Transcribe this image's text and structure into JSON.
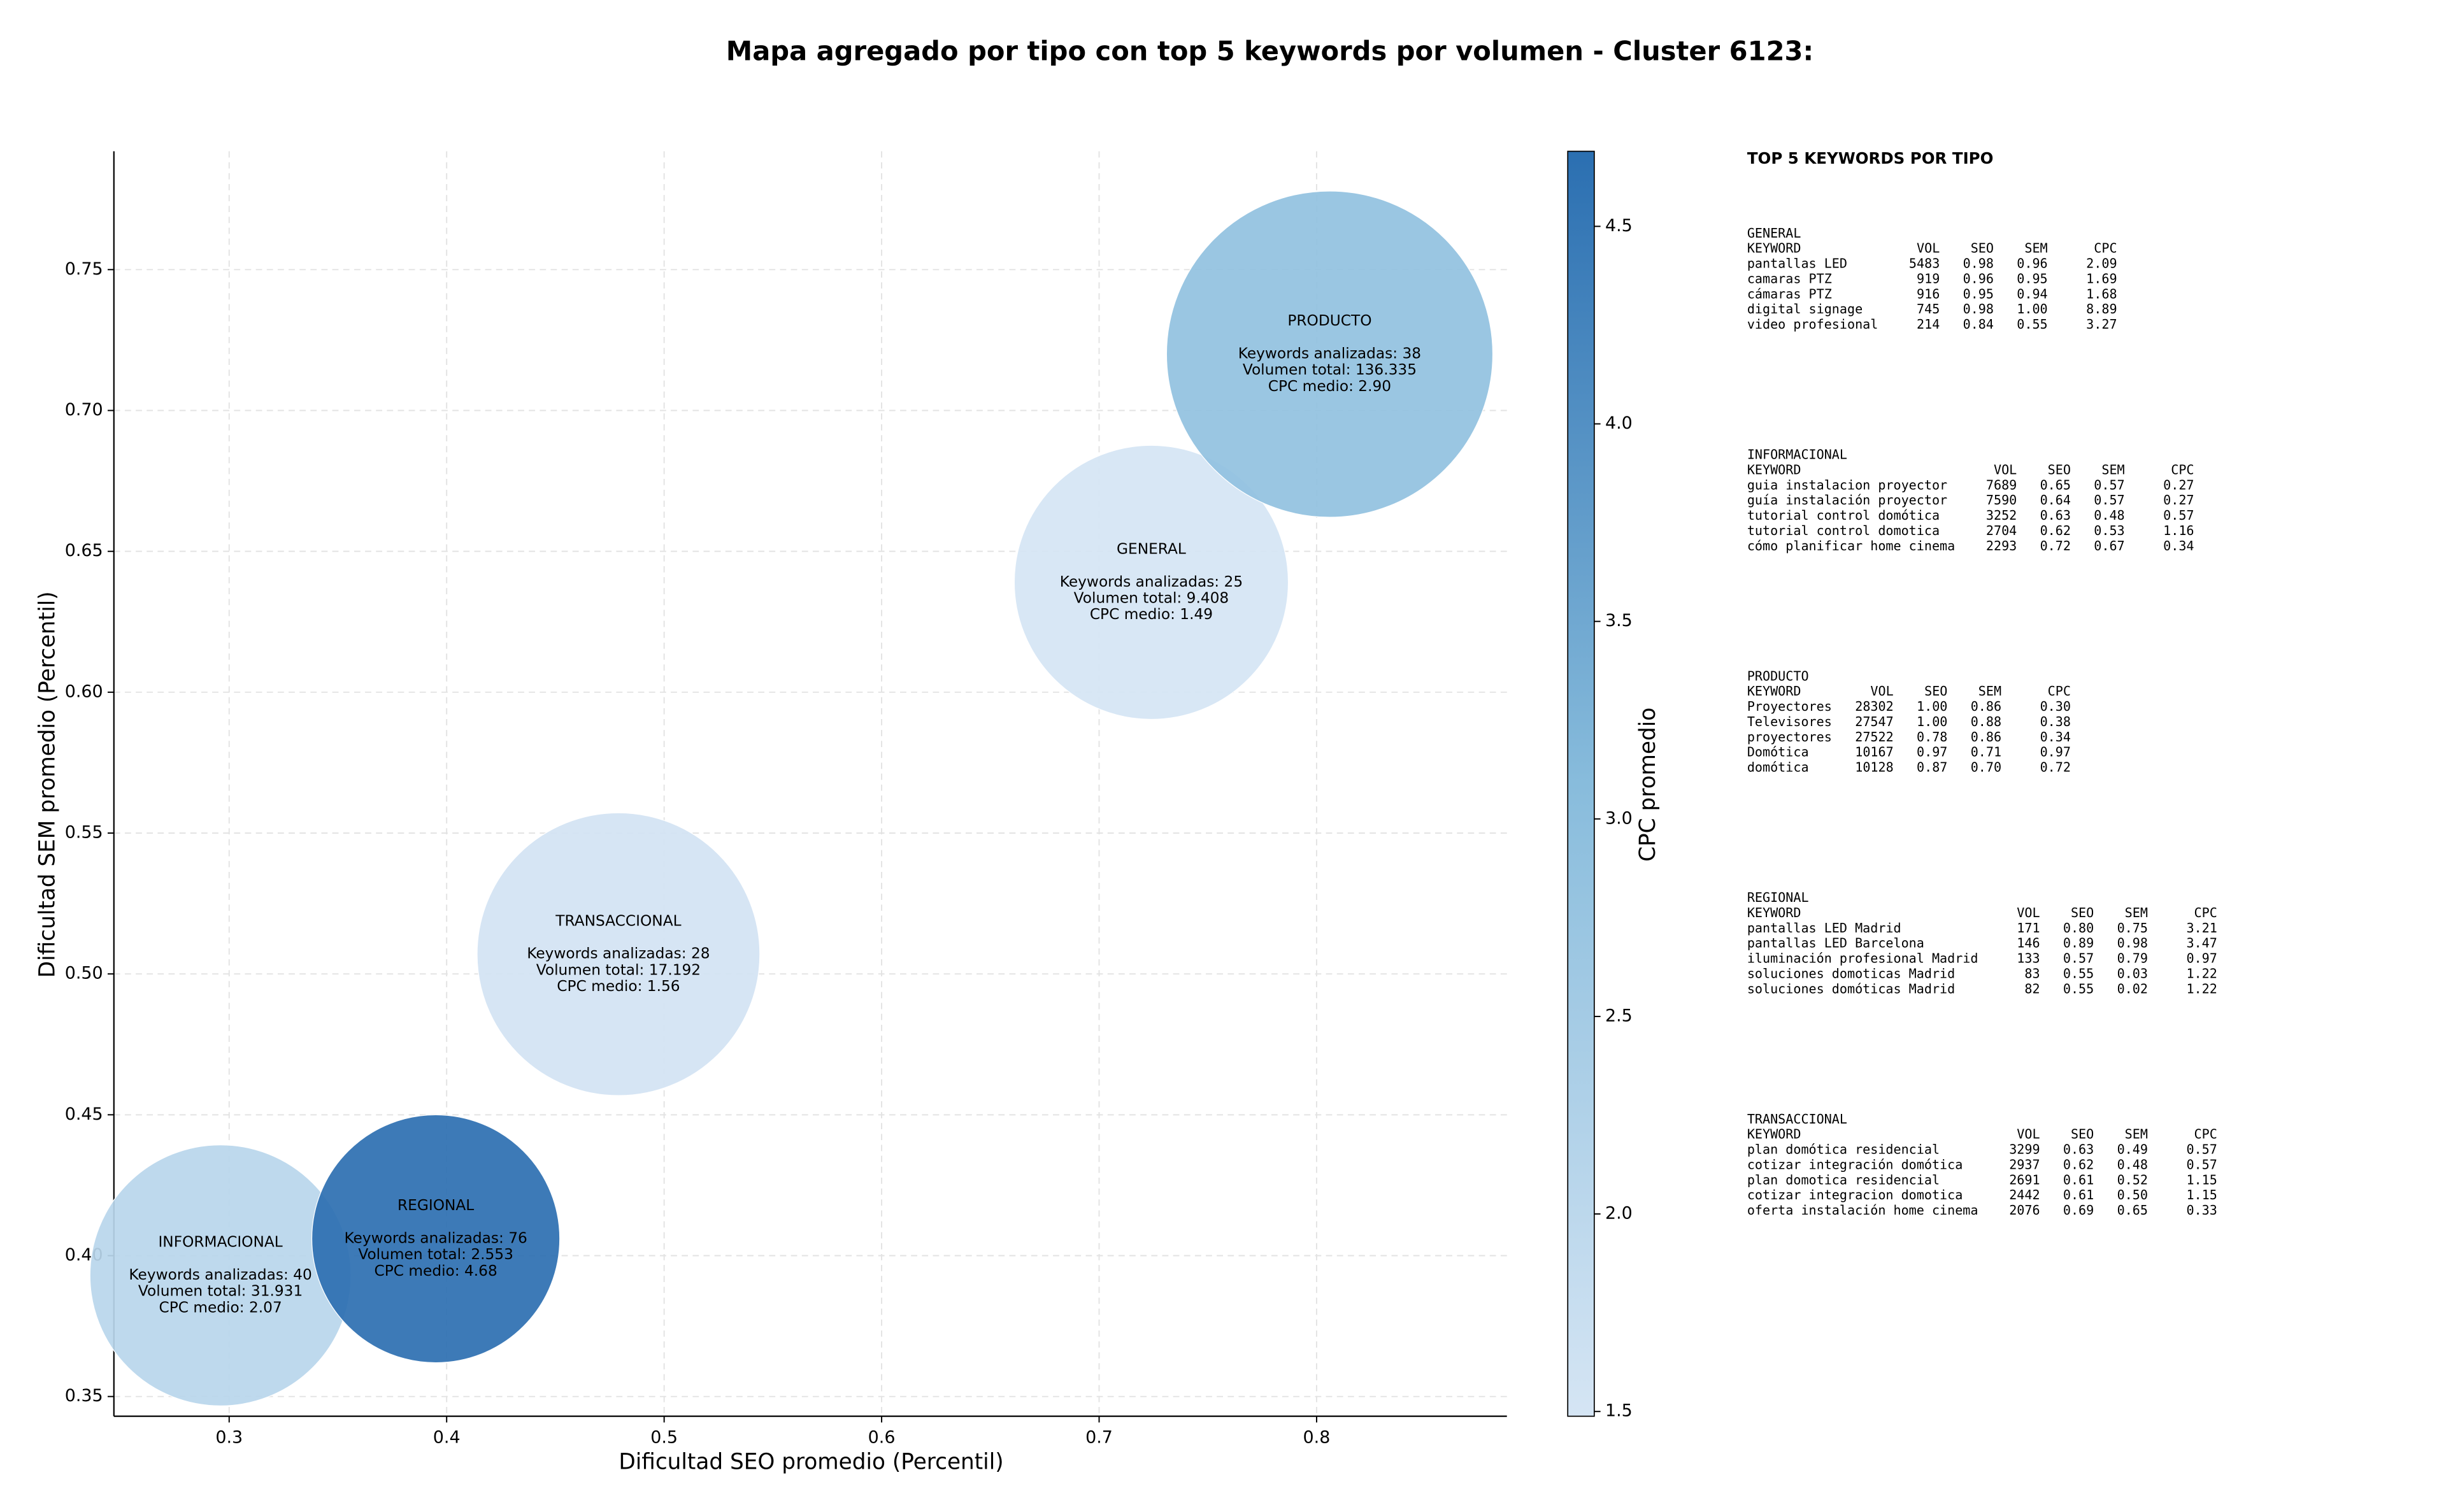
{
  "chart_data": {
    "type": "bubble",
    "title": "Mapa agregado por tipo con top 5 keywords por volumen - Cluster 6123:",
    "xlabel": "Dificultad SEO promedio (Percentil)",
    "ylabel": "Dificultad SEM promedio (Percentil)",
    "xlim": [
      0.247,
      0.8875
    ],
    "ylim": [
      0.343,
      0.792
    ],
    "xticks": [
      0.3,
      0.4,
      0.5,
      0.6,
      0.7,
      0.8
    ],
    "yticks": [
      0.35,
      {
        "value": 0.4,
        "label": "0.40"
      },
      0.45,
      {
        "value": 0.5,
        "label": "0.50"
      },
      0.55,
      {
        "value": 0.6,
        "label": "0.60"
      },
      0.65,
      {
        "value": 0.7,
        "label": "0.70"
      },
      0.75
    ],
    "grid": true,
    "series": [
      {
        "names": [
          "INFORMACIONAL",
          "REGIONAL",
          "TRANSACCIONAL",
          "GENERAL",
          "PRODUCTO"
        ],
        "x": [
          0.296,
          0.395,
          0.479,
          0.724,
          0.806
        ],
        "y": [
          0.393,
          0.406,
          0.507,
          0.639,
          0.72
        ],
        "sizes": [
          0.06,
          0.057,
          0.065,
          0.063,
          0.075
        ],
        "cpc": [
          2.07,
          4.68,
          1.56,
          1.49,
          2.9
        ],
        "annotations": [
          [
            "Keywords analizadas: 40",
            "Volumen total: 31.931",
            "CPC medio: 2.07"
          ],
          [
            "Keywords analizadas: 76",
            "Volumen total: 2.553",
            "CPC medio: 4.68"
          ],
          [
            "Keywords analizadas: 28",
            "Volumen total: 17.192",
            "CPC medio: 1.56"
          ],
          [
            "Keywords analizadas: 25",
            "Volumen total: 9.408",
            "CPC medio: 1.49"
          ],
          [
            "Keywords analizadas: 38",
            "Volumen total: 136.335",
            "CPC medio: 2.90"
          ]
        ]
      }
    ],
    "colorbar": {
      "label": "CPC promedio",
      "clim": [
        1.488,
        4.69
      ],
      "ticks": [
        1.5,
        {
          "value": 2.0,
          "label": "2.0"
        },
        2.5,
        {
          "value": 3.0,
          "label": "3.0"
        },
        3.5,
        {
          "value": 4.0,
          "label": "4.0"
        },
        4.5
      ],
      "colormap": [
        "#d5e5f4",
        "#88bcdc",
        "#2b6fb1"
      ]
    }
  },
  "keyword_panel": {
    "title": "TOP 5 KEYWORDS POR TIPO",
    "header": [
      "KEYWORD",
      "VOL",
      "SEO",
      "SEM",
      "CPC"
    ],
    "sections": [
      {
        "name": "GENERAL",
        "rows": [
          [
            "pantallas LED",
            "5483",
            "0.98",
            "0.96",
            "2.09"
          ],
          [
            "camaras PTZ",
            "919",
            "0.96",
            "0.95",
            "1.69"
          ],
          [
            "cámaras PTZ",
            "916",
            "0.95",
            "0.94",
            "1.68"
          ],
          [
            "digital signage",
            "745",
            "0.98",
            "1.00",
            "8.89"
          ],
          [
            "video profesional",
            "214",
            "0.84",
            "0.55",
            "3.27"
          ]
        ]
      },
      {
        "name": "INFORMACIONAL",
        "rows": [
          [
            "guia instalacion proyector",
            "7689",
            "0.65",
            "0.57",
            "0.27"
          ],
          [
            "guía instalación proyector",
            "7590",
            "0.64",
            "0.57",
            "0.27"
          ],
          [
            "tutorial control domótica",
            "3252",
            "0.63",
            "0.48",
            "0.57"
          ],
          [
            "tutorial control domotica",
            "2704",
            "0.62",
            "0.53",
            "1.16"
          ],
          [
            "cómo planificar home cinema",
            "2293",
            "0.72",
            "0.67",
            "0.34"
          ]
        ]
      },
      {
        "name": "PRODUCTO",
        "rows": [
          [
            "Proyectores",
            "28302",
            "1.00",
            "0.86",
            "0.30"
          ],
          [
            "Televisores",
            "27547",
            "1.00",
            "0.88",
            "0.38"
          ],
          [
            "proyectores",
            "27522",
            "0.78",
            "0.86",
            "0.34"
          ],
          [
            "Domótica",
            "10167",
            "0.97",
            "0.71",
            "0.97"
          ],
          [
            "domótica",
            "10128",
            "0.87",
            "0.70",
            "0.72"
          ]
        ]
      },
      {
        "name": "REGIONAL",
        "rows": [
          [
            "pantallas LED Madrid",
            "171",
            "0.80",
            "0.75",
            "3.21"
          ],
          [
            "pantallas LED Barcelona",
            "146",
            "0.89",
            "0.98",
            "3.47"
          ],
          [
            "iluminación profesional Madrid",
            "133",
            "0.57",
            "0.79",
            "0.97"
          ],
          [
            "soluciones domoticas Madrid",
            "83",
            "0.55",
            "0.03",
            "1.22"
          ],
          [
            "soluciones domóticas Madrid",
            "82",
            "0.55",
            "0.02",
            "1.22"
          ]
        ]
      },
      {
        "name": "TRANSACCIONAL",
        "rows": [
          [
            "plan domótica residencial",
            "3299",
            "0.63",
            "0.49",
            "0.57"
          ],
          [
            "cotizar integración domótica",
            "2937",
            "0.62",
            "0.48",
            "0.57"
          ],
          [
            "plan domotica residencial",
            "2691",
            "0.61",
            "0.52",
            "1.15"
          ],
          [
            "cotizar integracion domotica",
            "2442",
            "0.61",
            "0.50",
            "1.15"
          ],
          [
            "oferta instalación home cinema",
            "2076",
            "0.69",
            "0.65",
            "0.33"
          ]
        ]
      }
    ]
  }
}
